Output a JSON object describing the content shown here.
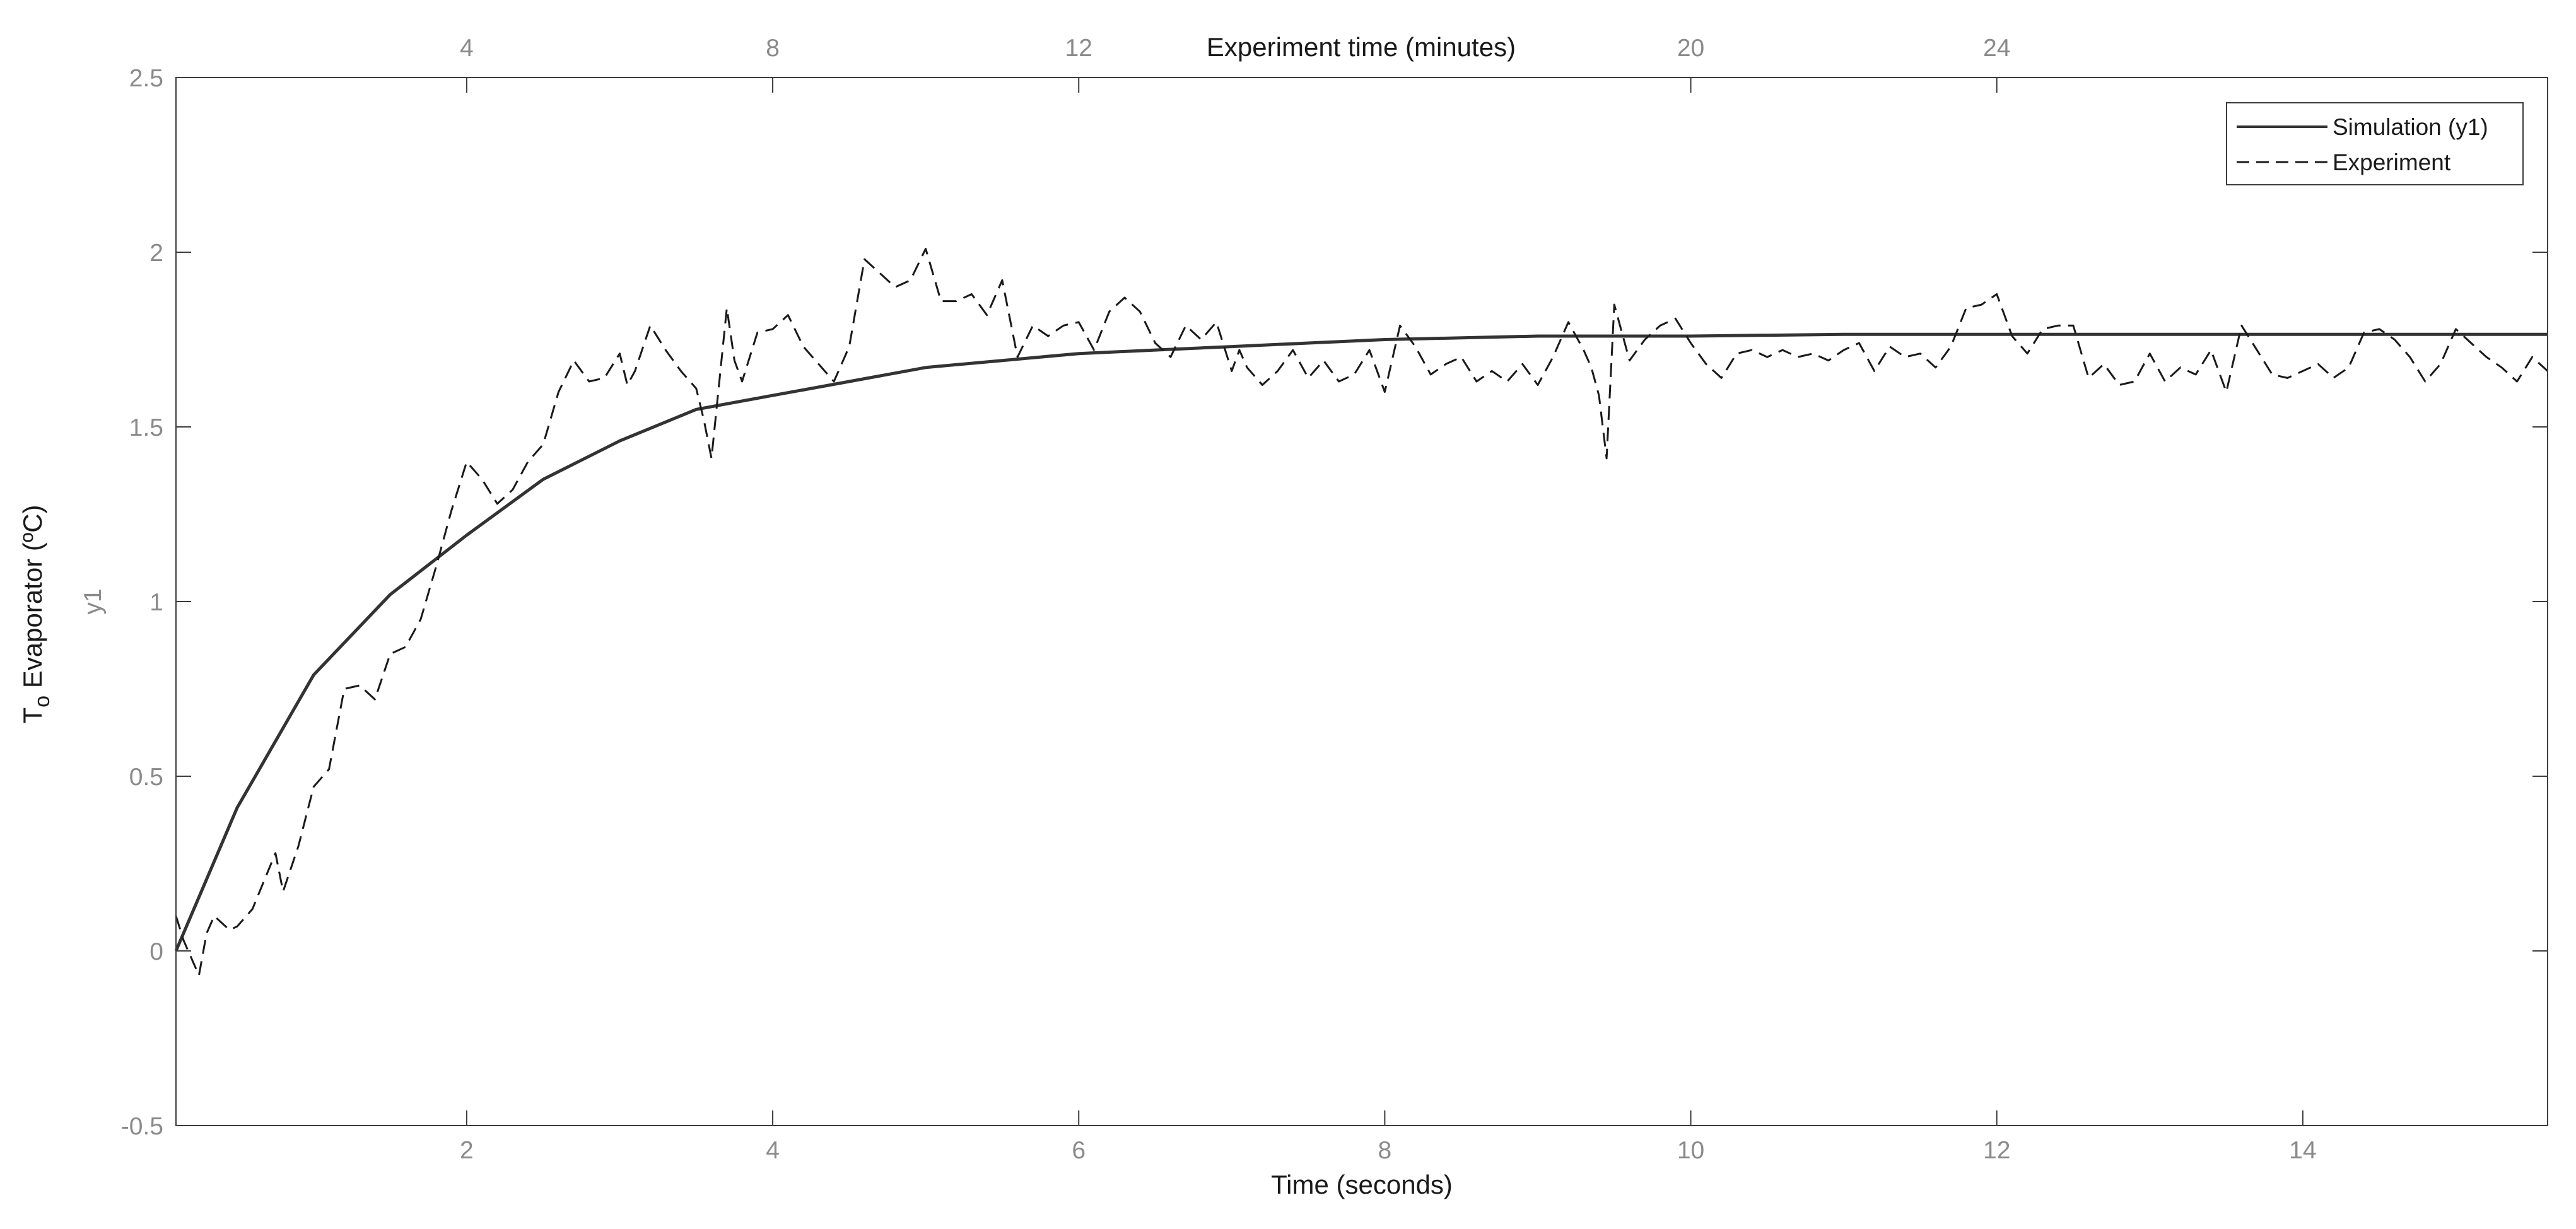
{
  "chart_data": {
    "type": "line",
    "title": "",
    "xlabel": "Time (seconds)",
    "x2label": "Experiment time (minutes)",
    "ylabel_main": "T",
    "ylabel_sub": "o",
    "ylabel_rest": " Evaporator (ºC)",
    "ylabel2": "y1",
    "xlim": [
      0.1,
      15.6
    ],
    "ylim": [
      -0.5,
      2.5
    ],
    "x_ticks": [
      2,
      4,
      6,
      8,
      10,
      12,
      14
    ],
    "x_tick_labels": [
      "2",
      "4",
      "6",
      "8",
      "10",
      "12",
      "14"
    ],
    "x2_ticks": [
      4,
      8,
      12,
      20,
      24
    ],
    "x2_tick_labels": [
      "4",
      "8",
      "12",
      "20",
      "24"
    ],
    "x2_scale": 0.5,
    "y_ticks": [
      -0.5,
      0,
      0.5,
      1,
      1.5,
      2,
      2.5
    ],
    "y_tick_labels": [
      "-0.5",
      "0",
      "0.5",
      "1",
      "1.5",
      "2",
      "2.5"
    ],
    "grid": false,
    "legend_position": "top-right",
    "series": [
      {
        "name": "Simulation (y1)",
        "style": "solid",
        "color": "#333333",
        "x": [
          0.1,
          0.5,
          1.0,
          1.5,
          2.0,
          2.5,
          3.0,
          3.5,
          4.0,
          4.5,
          5.0,
          5.5,
          6.0,
          6.5,
          7.0,
          7.5,
          8.0,
          9.0,
          10.0,
          11.0,
          12.0,
          13.0,
          14.0,
          15.6
        ],
        "y": [
          0.0,
          0.41,
          0.79,
          1.02,
          1.19,
          1.35,
          1.46,
          1.55,
          1.59,
          1.63,
          1.67,
          1.69,
          1.71,
          1.72,
          1.73,
          1.74,
          1.75,
          1.76,
          1.76,
          1.765,
          1.765,
          1.765,
          1.765,
          1.765
        ]
      },
      {
        "name": "Experiment",
        "style": "dashed",
        "color": "#1a1a1a",
        "x": [
          0.1,
          0.15,
          0.25,
          0.3,
          0.35,
          0.45,
          0.5,
          0.6,
          0.75,
          0.8,
          0.9,
          1.0,
          1.1,
          1.2,
          1.3,
          1.4,
          1.5,
          1.6,
          1.7,
          1.8,
          1.9,
          2.0,
          2.1,
          2.2,
          2.3,
          2.4,
          2.5,
          2.6,
          2.7,
          2.8,
          2.9,
          3.0,
          3.05,
          3.1,
          3.2,
          3.3,
          3.4,
          3.5,
          3.55,
          3.6,
          3.7,
          3.75,
          3.8,
          3.9,
          4.0,
          4.1,
          4.2,
          4.4,
          4.5,
          4.6,
          4.7,
          4.8,
          4.9,
          5.0,
          5.1,
          5.2,
          5.3,
          5.4,
          5.5,
          5.6,
          5.7,
          5.8,
          5.9,
          6.0,
          6.1,
          6.2,
          6.3,
          6.4,
          6.5,
          6.6,
          6.7,
          6.8,
          6.9,
          7.0,
          7.05,
          7.1,
          7.2,
          7.3,
          7.4,
          7.5,
          7.6,
          7.7,
          7.8,
          7.9,
          8.0,
          8.1,
          8.2,
          8.3,
          8.4,
          8.5,
          8.6,
          8.7,
          8.8,
          8.9,
          9.0,
          9.1,
          9.2,
          9.3,
          9.35,
          9.4,
          9.45,
          9.5,
          9.6,
          9.7,
          9.8,
          9.9,
          10.0,
          10.1,
          10.2,
          10.3,
          10.4,
          10.5,
          10.6,
          10.7,
          10.8,
          10.9,
          11.0,
          11.1,
          11.2,
          11.3,
          11.4,
          11.5,
          11.6,
          11.7,
          11.8,
          11.9,
          12.0,
          12.1,
          12.2,
          12.3,
          12.4,
          12.5,
          12.6,
          12.7,
          12.8,
          12.9,
          13.0,
          13.1,
          13.2,
          13.3,
          13.4,
          13.5,
          13.6,
          13.7,
          13.8,
          13.9,
          14.0,
          14.1,
          14.2,
          14.3,
          14.4,
          14.5,
          14.6,
          14.7,
          14.8,
          14.9,
          15.0,
          15.1,
          15.2,
          15.3,
          15.4,
          15.5,
          15.6
        ],
        "y": [
          0.1,
          0.03,
          -0.07,
          0.05,
          0.1,
          0.06,
          0.07,
          0.12,
          0.28,
          0.17,
          0.3,
          0.47,
          0.52,
          0.75,
          0.76,
          0.72,
          0.85,
          0.87,
          0.95,
          1.1,
          1.26,
          1.4,
          1.35,
          1.28,
          1.32,
          1.4,
          1.45,
          1.6,
          1.69,
          1.63,
          1.64,
          1.71,
          1.62,
          1.66,
          1.79,
          1.72,
          1.66,
          1.61,
          1.52,
          1.41,
          1.84,
          1.69,
          1.63,
          1.77,
          1.78,
          1.82,
          1.73,
          1.63,
          1.73,
          1.98,
          1.94,
          1.9,
          1.92,
          2.01,
          1.86,
          1.86,
          1.88,
          1.82,
          1.92,
          1.7,
          1.79,
          1.76,
          1.79,
          1.8,
          1.72,
          1.83,
          1.87,
          1.83,
          1.74,
          1.7,
          1.79,
          1.75,
          1.8,
          1.66,
          1.72,
          1.67,
          1.62,
          1.66,
          1.72,
          1.64,
          1.69,
          1.63,
          1.65,
          1.72,
          1.6,
          1.79,
          1.73,
          1.65,
          1.68,
          1.7,
          1.63,
          1.66,
          1.63,
          1.68,
          1.62,
          1.7,
          1.8,
          1.72,
          1.67,
          1.59,
          1.41,
          1.85,
          1.69,
          1.75,
          1.79,
          1.81,
          1.74,
          1.68,
          1.64,
          1.71,
          1.72,
          1.7,
          1.72,
          1.7,
          1.71,
          1.69,
          1.72,
          1.74,
          1.66,
          1.73,
          1.7,
          1.71,
          1.67,
          1.73,
          1.84,
          1.85,
          1.88,
          1.76,
          1.71,
          1.78,
          1.79,
          1.79,
          1.64,
          1.68,
          1.62,
          1.63,
          1.71,
          1.63,
          1.67,
          1.65,
          1.72,
          1.6,
          1.79,
          1.72,
          1.65,
          1.64,
          1.66,
          1.68,
          1.64,
          1.67,
          1.77,
          1.78,
          1.75,
          1.7,
          1.63,
          1.68,
          1.78,
          1.74,
          1.7,
          1.67,
          1.63,
          1.7,
          1.66
        ]
      }
    ]
  }
}
